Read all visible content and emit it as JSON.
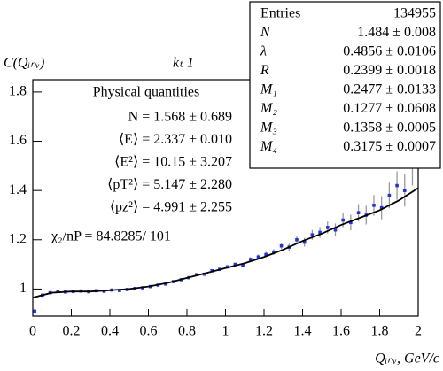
{
  "chart_data": {
    "type": "scatter",
    "title": "C(Qᵢₙᵥ)",
    "subtitle": "kₜ 1",
    "x_label": "Qᵢₙᵥ, GeV/c",
    "xlim": [
      0,
      2
    ],
    "ylim": [
      0.89,
      1.85
    ],
    "xticks": [
      0,
      0.2,
      0.4,
      0.6,
      0.8,
      1,
      1.2,
      1.4,
      1.6,
      1.8,
      2
    ],
    "yticks": [
      1,
      1.2,
      1.4,
      1.6,
      1.8
    ],
    "series": [
      {
        "name": "data",
        "color": "#2233dd",
        "error_color": "#999999",
        "x": [
          0.01,
          0.05,
          0.09,
          0.13,
          0.17,
          0.21,
          0.25,
          0.29,
          0.33,
          0.37,
          0.41,
          0.45,
          0.49,
          0.53,
          0.57,
          0.61,
          0.65,
          0.69,
          0.73,
          0.77,
          0.81,
          0.85,
          0.89,
          0.93,
          0.97,
          1.01,
          1.05,
          1.09,
          1.13,
          1.17,
          1.21,
          1.25,
          1.29,
          1.33,
          1.37,
          1.41,
          1.45,
          1.49,
          1.53,
          1.57,
          1.61,
          1.65,
          1.69,
          1.73,
          1.77,
          1.81,
          1.85,
          1.89,
          1.93,
          1.97
        ],
        "values": [
          0.91,
          0.975,
          0.985,
          0.99,
          0.988,
          0.99,
          0.992,
          0.989,
          0.993,
          0.991,
          0.996,
          0.994,
          0.998,
          1.002,
          1.005,
          1.01,
          1.016,
          1.02,
          1.03,
          1.038,
          1.046,
          1.058,
          1.06,
          1.074,
          1.08,
          1.09,
          1.1,
          1.095,
          1.12,
          1.13,
          1.14,
          1.15,
          1.175,
          1.17,
          1.2,
          1.19,
          1.22,
          1.23,
          1.25,
          1.24,
          1.28,
          1.27,
          1.31,
          1.3,
          1.34,
          1.33,
          1.38,
          1.42,
          1.4,
          1.5
        ],
        "errors": [
          0.01,
          0.004,
          0.003,
          0.003,
          0.003,
          0.003,
          0.003,
          0.003,
          0.003,
          0.003,
          0.003,
          0.003,
          0.003,
          0.003,
          0.003,
          0.003,
          0.004,
          0.004,
          0.004,
          0.004,
          0.005,
          0.005,
          0.005,
          0.006,
          0.006,
          0.007,
          0.007,
          0.008,
          0.009,
          0.01,
          0.011,
          0.012,
          0.013,
          0.014,
          0.016,
          0.018,
          0.02,
          0.022,
          0.024,
          0.026,
          0.029,
          0.032,
          0.035,
          0.038,
          0.042,
          0.047,
          0.052,
          0.058,
          0.065,
          0.08
        ]
      },
      {
        "name": "fit",
        "color": "#000000",
        "x": [
          0,
          0.1,
          0.2,
          0.3,
          0.4,
          0.5,
          0.6,
          0.7,
          0.8,
          0.9,
          1,
          1.1,
          1.2,
          1.3,
          1.4,
          1.5,
          1.6,
          1.7,
          1.8,
          1.9,
          2
        ],
        "values": [
          0.965,
          0.985,
          0.99,
          0.99,
          0.995,
          1.0,
          1.01,
          1.025,
          1.045,
          1.065,
          1.085,
          1.105,
          1.13,
          1.16,
          1.195,
          1.225,
          1.26,
          1.29,
          1.32,
          1.36,
          1.41
        ]
      }
    ],
    "quantities_title": "Physical quantities",
    "quantities": [
      "N = 1.568 ± 0.689",
      "⟨E⟩ = 2.337 ± 0.010",
      "⟨E²⟩ = 10.15 ± 3.207",
      "⟨pT²⟩ = 5.147 ± 2.280",
      "⟨pz²⟩ = 4.991 ± 2.255"
    ],
    "chi2": "χ₂/nP = 84.8285/   101",
    "stats": [
      {
        "label": "Entries",
        "value": 134955
      },
      {
        "label": "N",
        "value": "1.484 ± 0.008"
      },
      {
        "label": "λ",
        "value": "0.4856 ± 0.0106"
      },
      {
        "label": "R",
        "value": "0.2399 ± 0.0018"
      },
      {
        "label": "M₁",
        "value": "0.2477 ± 0.0133"
      },
      {
        "label": "M₂",
        "value": "0.1277 ± 0.0608"
      },
      {
        "label": "M₃",
        "value": "0.1358 ± 0.0005"
      },
      {
        "label": "M₄",
        "value": "0.3175 ± 0.0007"
      }
    ]
  }
}
